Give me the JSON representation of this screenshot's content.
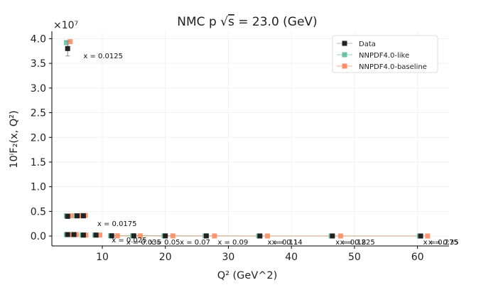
{
  "chart_data": {
    "type": "scatter",
    "title": "NMC p √ŝ = 23.0 (GeV)",
    "title_parts": {
      "prefix": "NMC p ",
      "sqrt": "√",
      "s": "s",
      "suffix": " = 23.0 (GeV)"
    },
    "xlabel": "Q² (GeV^2)",
    "ylabel": "10ⁱF₂(x, Q²)",
    "y_multiplier": "×10⁷",
    "xlim": [
      2,
      65
    ],
    "ylim": [
      -0.2,
      4.15
    ],
    "xticks": [
      10,
      20,
      30,
      40,
      50,
      60
    ],
    "yticks": [
      0.0,
      0.5,
      1.0,
      1.5,
      2.0,
      2.5,
      3.0,
      3.5,
      4.0
    ],
    "grid": true,
    "legend_position": "top-right",
    "colors": {
      "data": "#222222",
      "like": "#66c2a5",
      "baseline": "#fc8d62",
      "axis": "#000000",
      "grid": "#eeeeee"
    },
    "series": [
      {
        "name": "Data",
        "marker": "square",
        "points": [
          {
            "x": 4.5,
            "y": 3.8,
            "err": 0.15
          },
          {
            "x": 4.5,
            "y": 0.4,
            "err": 0.02
          },
          {
            "x": 6.0,
            "y": 0.41,
            "err": 0.02
          },
          {
            "x": 7.0,
            "y": 0.41,
            "err": 0.02
          },
          {
            "x": 4.5,
            "y": 0.03,
            "err": 0.01
          },
          {
            "x": 5.5,
            "y": 0.03,
            "err": 0.01
          },
          {
            "x": 7.0,
            "y": 0.02,
            "err": 0.01
          },
          {
            "x": 9.0,
            "y": 0.02,
            "err": 0.01
          },
          {
            "x": 11.5,
            "y": 0.005,
            "err": 0.005
          },
          {
            "x": 15.0,
            "y": 0.004,
            "err": 0.005
          },
          {
            "x": 20.0,
            "y": 0.003,
            "err": 0.005
          },
          {
            "x": 26.5,
            "y": 0.003,
            "err": 0.005
          },
          {
            "x": 35.0,
            "y": 0.002,
            "err": 0.005
          },
          {
            "x": 46.5,
            "y": 0.002,
            "err": 0.005
          },
          {
            "x": 60.5,
            "y": 0.001,
            "err": 0.005
          }
        ]
      },
      {
        "name": "NNPDF4.0-like",
        "marker": "square",
        "points": [
          {
            "x": 4.3,
            "y": 3.92
          },
          {
            "x": 4.3,
            "y": 0.41
          },
          {
            "x": 5.8,
            "y": 0.41
          },
          {
            "x": 6.8,
            "y": 0.42
          },
          {
            "x": 4.3,
            "y": 0.03
          },
          {
            "x": 5.3,
            "y": 0.03
          },
          {
            "x": 6.8,
            "y": 0.02
          },
          {
            "x": 8.8,
            "y": 0.02
          },
          {
            "x": 11.3,
            "y": 0.006
          },
          {
            "x": 14.8,
            "y": 0.005
          },
          {
            "x": 19.8,
            "y": 0.004
          },
          {
            "x": 26.3,
            "y": 0.003
          },
          {
            "x": 34.8,
            "y": 0.002
          },
          {
            "x": 46.3,
            "y": 0.002
          },
          {
            "x": 60.3,
            "y": 0.001
          }
        ]
      },
      {
        "name": "NNPDF4.0-baseline",
        "marker": "square",
        "points": [
          {
            "x": 4.9,
            "y": 3.94
          },
          {
            "x": 5.0,
            "y": 0.41
          },
          {
            "x": 6.3,
            "y": 0.41
          },
          {
            "x": 7.3,
            "y": 0.42
          },
          {
            "x": 5.0,
            "y": 0.03
          },
          {
            "x": 5.9,
            "y": 0.03
          },
          {
            "x": 7.4,
            "y": 0.02
          },
          {
            "x": 9.6,
            "y": 0.02
          },
          {
            "x": 12.4,
            "y": 0.006
          },
          {
            "x": 16.0,
            "y": 0.005
          },
          {
            "x": 21.2,
            "y": 0.004
          },
          {
            "x": 27.8,
            "y": 0.003
          },
          {
            "x": 36.2,
            "y": 0.002
          },
          {
            "x": 47.8,
            "y": 0.002
          },
          {
            "x": 61.6,
            "y": 0.001
          }
        ]
      }
    ],
    "annotations": [
      {
        "text": "x = 0.0125",
        "x": 7.0,
        "y": 3.6
      },
      {
        "text": "x = 0.0175",
        "x": 9.2,
        "y": 0.2
      },
      {
        "text": "x = 0.025",
        "x": 11.5,
        "y": -0.13
      },
      {
        "text": "x = 0.035",
        "x": 13.8,
        "y": -0.17
      },
      {
        "text": "x = 0.05",
        "x": 17.5,
        "y": -0.17
      },
      {
        "text": "x = 0.07",
        "x": 22.3,
        "y": -0.17
      },
      {
        "text": "x = 0.09",
        "x": 28.3,
        "y": -0.17
      },
      {
        "text": "x = 0.11",
        "x": 36.2,
        "y": -0.17
      },
      {
        "text": "x = 0.14",
        "x": 36.9,
        "y": -0.17
      },
      {
        "text": "x = 0.18",
        "x": 47.0,
        "y": -0.17
      },
      {
        "text": "x = 0.225",
        "x": 47.7,
        "y": -0.17
      },
      {
        "text": "x = 0.275",
        "x": 60.9,
        "y": -0.17
      },
      {
        "text": "x = 0.35",
        "x": 61.7,
        "y": -0.17
      }
    ]
  }
}
